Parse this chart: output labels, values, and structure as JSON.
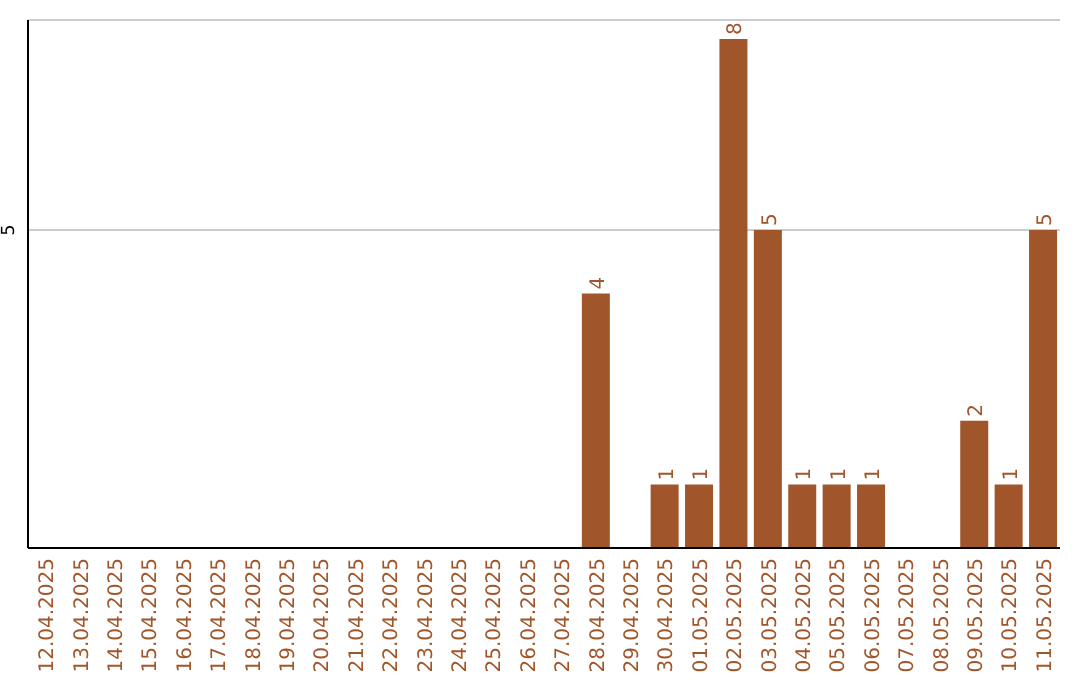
{
  "chart_data": {
    "type": "bar",
    "categories": [
      "12.04.2025",
      "13.04.2025",
      "14.04.2025",
      "15.04.2025",
      "16.04.2025",
      "17.04.2025",
      "18.04.2025",
      "19.04.2025",
      "20.04.2025",
      "21.04.2025",
      "22.04.2025",
      "23.04.2025",
      "24.04.2025",
      "25.04.2025",
      "26.04.2025",
      "27.04.2025",
      "28.04.2025",
      "29.04.2025",
      "30.04.2025",
      "01.05.2025",
      "02.05.2025",
      "03.05.2025",
      "04.05.2025",
      "05.05.2025",
      "06.05.2025",
      "07.05.2025",
      "08.05.2025",
      "09.05.2025",
      "10.05.2025",
      "11.05.2025"
    ],
    "values": [
      null,
      null,
      null,
      null,
      null,
      null,
      null,
      null,
      null,
      null,
      null,
      null,
      null,
      null,
      null,
      null,
      4,
      null,
      1,
      1,
      8,
      5,
      1,
      1,
      1,
      null,
      null,
      2,
      1,
      5
    ],
    "data_labels": true,
    "color": "#a0562a",
    "ylim": [
      0,
      8.3
    ],
    "yticks": [
      {
        "value": 0,
        "label": null
      },
      5
    ],
    "grid": "y"
  }
}
